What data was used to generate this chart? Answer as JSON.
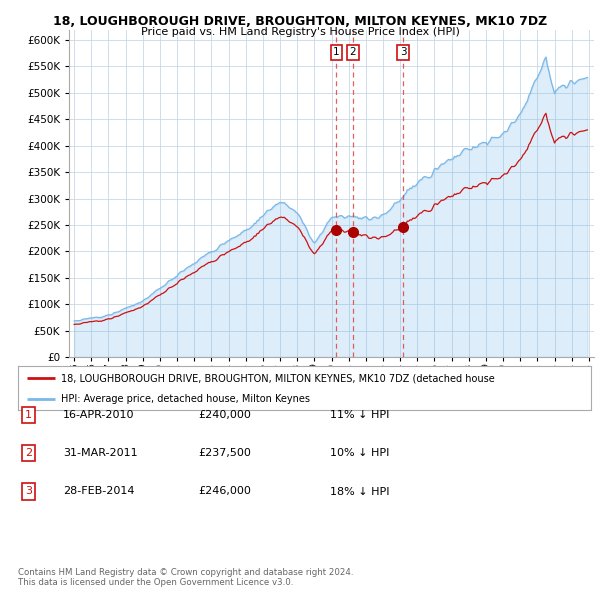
{
  "title": "18, LOUGHBOROUGH DRIVE, BROUGHTON, MILTON KEYNES, MK10 7DZ",
  "subtitle": "Price paid vs. HM Land Registry's House Price Index (HPI)",
  "hpi_color": "#7ab8e8",
  "hpi_fill": "#d6eaf8",
  "sale_color": "#cc1111",
  "sale_marker_color": "#aa0000",
  "vline_color": "#dd4444",
  "legend_sale": "18, LOUGHBOROUGH DRIVE, BROUGHTON, MILTON KEYNES, MK10 7DZ (detached house",
  "legend_hpi": "HPI: Average price, detached house, Milton Keynes",
  "table_rows": [
    [
      "1",
      "16-APR-2010",
      "£240,000",
      "11% ↓ HPI"
    ],
    [
      "2",
      "31-MAR-2011",
      "£237,500",
      "10% ↓ HPI"
    ],
    [
      "3",
      "28-FEB-2014",
      "£246,000",
      "18% ↓ HPI"
    ]
  ],
  "sales": [
    {
      "date_num": 2010.29,
      "price": 240000,
      "label": "1"
    },
    {
      "date_num": 2011.24,
      "price": 237500,
      "label": "2"
    },
    {
      "date_num": 2014.17,
      "price": 246000,
      "label": "3"
    }
  ],
  "vline_dates": [
    2010.29,
    2011.24,
    2014.17
  ],
  "footnote": "Contains HM Land Registry data © Crown copyright and database right 2024.\nThis data is licensed under the Open Government Licence v3.0.",
  "background_color": "#ffffff",
  "plot_bg": "#ffffff",
  "legend_bg": "#ffffff",
  "grid_color": "#c8d8e8",
  "label_box_color": "#cc1111"
}
